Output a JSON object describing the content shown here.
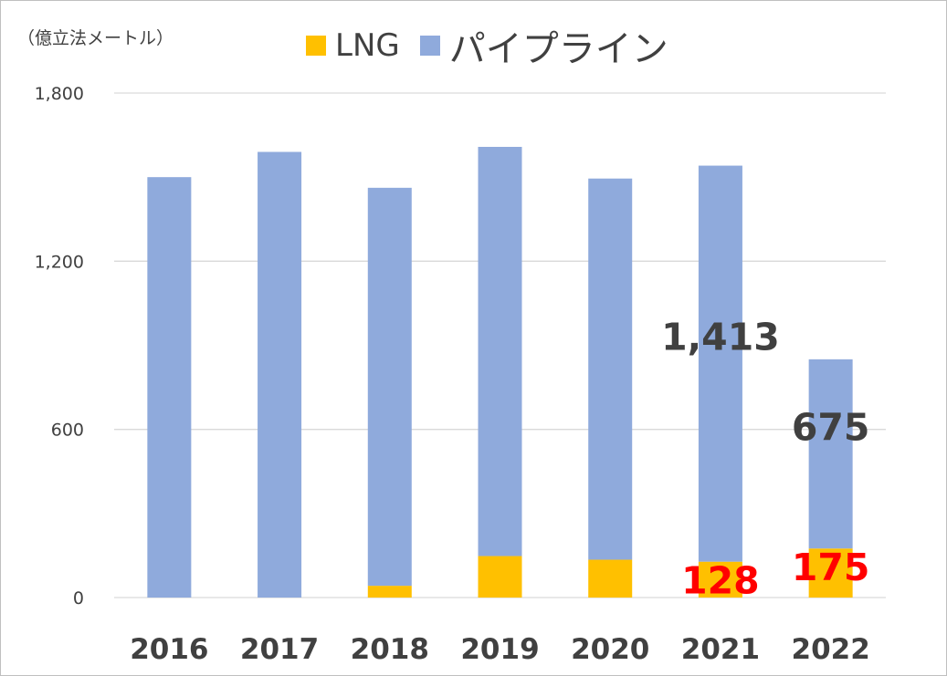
{
  "chart_data": {
    "type": "bar",
    "stacked": true,
    "unit_label": "（億立法メートル）",
    "categories": [
      "2016",
      "2017",
      "2018",
      "2019",
      "2020",
      "2021",
      "2022"
    ],
    "series": [
      {
        "name": "LNG",
        "color": "#ffc000",
        "values": [
          0,
          0,
          42,
          148,
          135,
          128,
          175
        ]
      },
      {
        "name": "パイプライン",
        "color": "#8faadc",
        "values": [
          1500,
          1590,
          1420,
          1460,
          1360,
          1413,
          675
        ]
      }
    ],
    "ylim": [
      0,
      1800
    ],
    "yticks": [
      {
        "value": 0,
        "label": "0"
      },
      {
        "value": 600,
        "label": "600"
      },
      {
        "value": 1200,
        "label": "1,200"
      },
      {
        "value": 1800,
        "label": "1,800"
      }
    ],
    "grid": true,
    "legend_position": "top",
    "annotations": [
      {
        "category": "2021",
        "series": "パイプライン",
        "text": "1,413",
        "color": "#404040"
      },
      {
        "category": "2022",
        "series": "パイプライン",
        "text": "675",
        "color": "#404040"
      },
      {
        "category": "2021",
        "series": "LNG",
        "text": "128",
        "color": "#ff0000"
      },
      {
        "category": "2022",
        "series": "LNG",
        "text": "175",
        "color": "#ff0000"
      }
    ]
  }
}
